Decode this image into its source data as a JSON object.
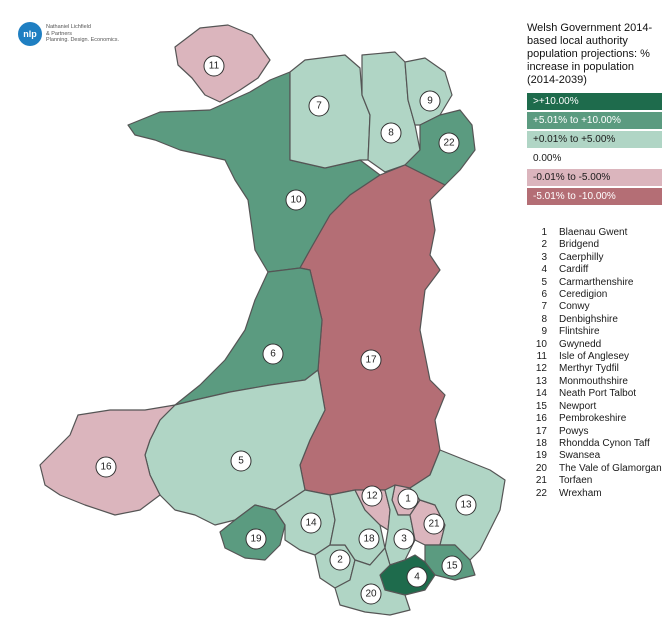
{
  "logo": {
    "mark": "nlp",
    "lines": [
      "Nathaniel Lichfield",
      "& Partners",
      "Planning. Design. Economics."
    ]
  },
  "legend": {
    "title": "Welsh Government 2014-based local authority population projections: % increase in population (2014-2039)",
    "classes": [
      {
        "label": ">+10.00%",
        "color": "#1e6b4c",
        "text_color": "#ffffff"
      },
      {
        "label": "+5.01% to +10.00%",
        "color": "#5b9b80",
        "text_color": "#ffffff"
      },
      {
        "label": "+0.01% to +5.00%",
        "color": "#b0d5c5",
        "text_color": "#1a1a1a"
      },
      {
        "label": "0.00%",
        "color": "#ffffff",
        "text_color": "#1a1a1a"
      },
      {
        "label": "-0.01% to -5.00%",
        "color": "#dbb5bd",
        "text_color": "#1a1a1a"
      },
      {
        "label": "-5.01% to -10.00%",
        "color": "#b46e75",
        "text_color": "#ffffff"
      }
    ]
  },
  "authorities": [
    {
      "n": "1",
      "name": "Blaenau Gwent",
      "class": 4
    },
    {
      "n": "2",
      "name": "Bridgend",
      "class": 2
    },
    {
      "n": "3",
      "name": "Caerphilly",
      "class": 2
    },
    {
      "n": "4",
      "name": "Cardiff",
      "class": 0
    },
    {
      "n": "5",
      "name": "Carmarthenshire",
      "class": 2
    },
    {
      "n": "6",
      "name": "Ceredigion",
      "class": 1
    },
    {
      "n": "7",
      "name": "Conwy",
      "class": 2
    },
    {
      "n": "8",
      "name": "Denbighshire",
      "class": 2
    },
    {
      "n": "9",
      "name": "Flintshire",
      "class": 2
    },
    {
      "n": "10",
      "name": "Gwynedd",
      "class": 1
    },
    {
      "n": "11",
      "name": "Isle of Anglesey",
      "class": 4
    },
    {
      "n": "12",
      "name": "Merthyr Tydfil",
      "class": 4
    },
    {
      "n": "13",
      "name": "Monmouthshire",
      "class": 2
    },
    {
      "n": "14",
      "name": "Neath Port Talbot",
      "class": 2
    },
    {
      "n": "15",
      "name": "Newport",
      "class": 1
    },
    {
      "n": "16",
      "name": "Pembrokeshire",
      "class": 4
    },
    {
      "n": "17",
      "name": "Powys",
      "class": 5
    },
    {
      "n": "18",
      "name": "Rhondda Cynon Taff",
      "class": 2
    },
    {
      "n": "19",
      "name": "Swansea",
      "class": 1
    },
    {
      "n": "20",
      "name": "The Vale of Glamorgan",
      "class": 2
    },
    {
      "n": "21",
      "name": "Torfaen",
      "class": 4
    },
    {
      "n": "22",
      "name": "Wrexham",
      "class": 1
    }
  ]
}
